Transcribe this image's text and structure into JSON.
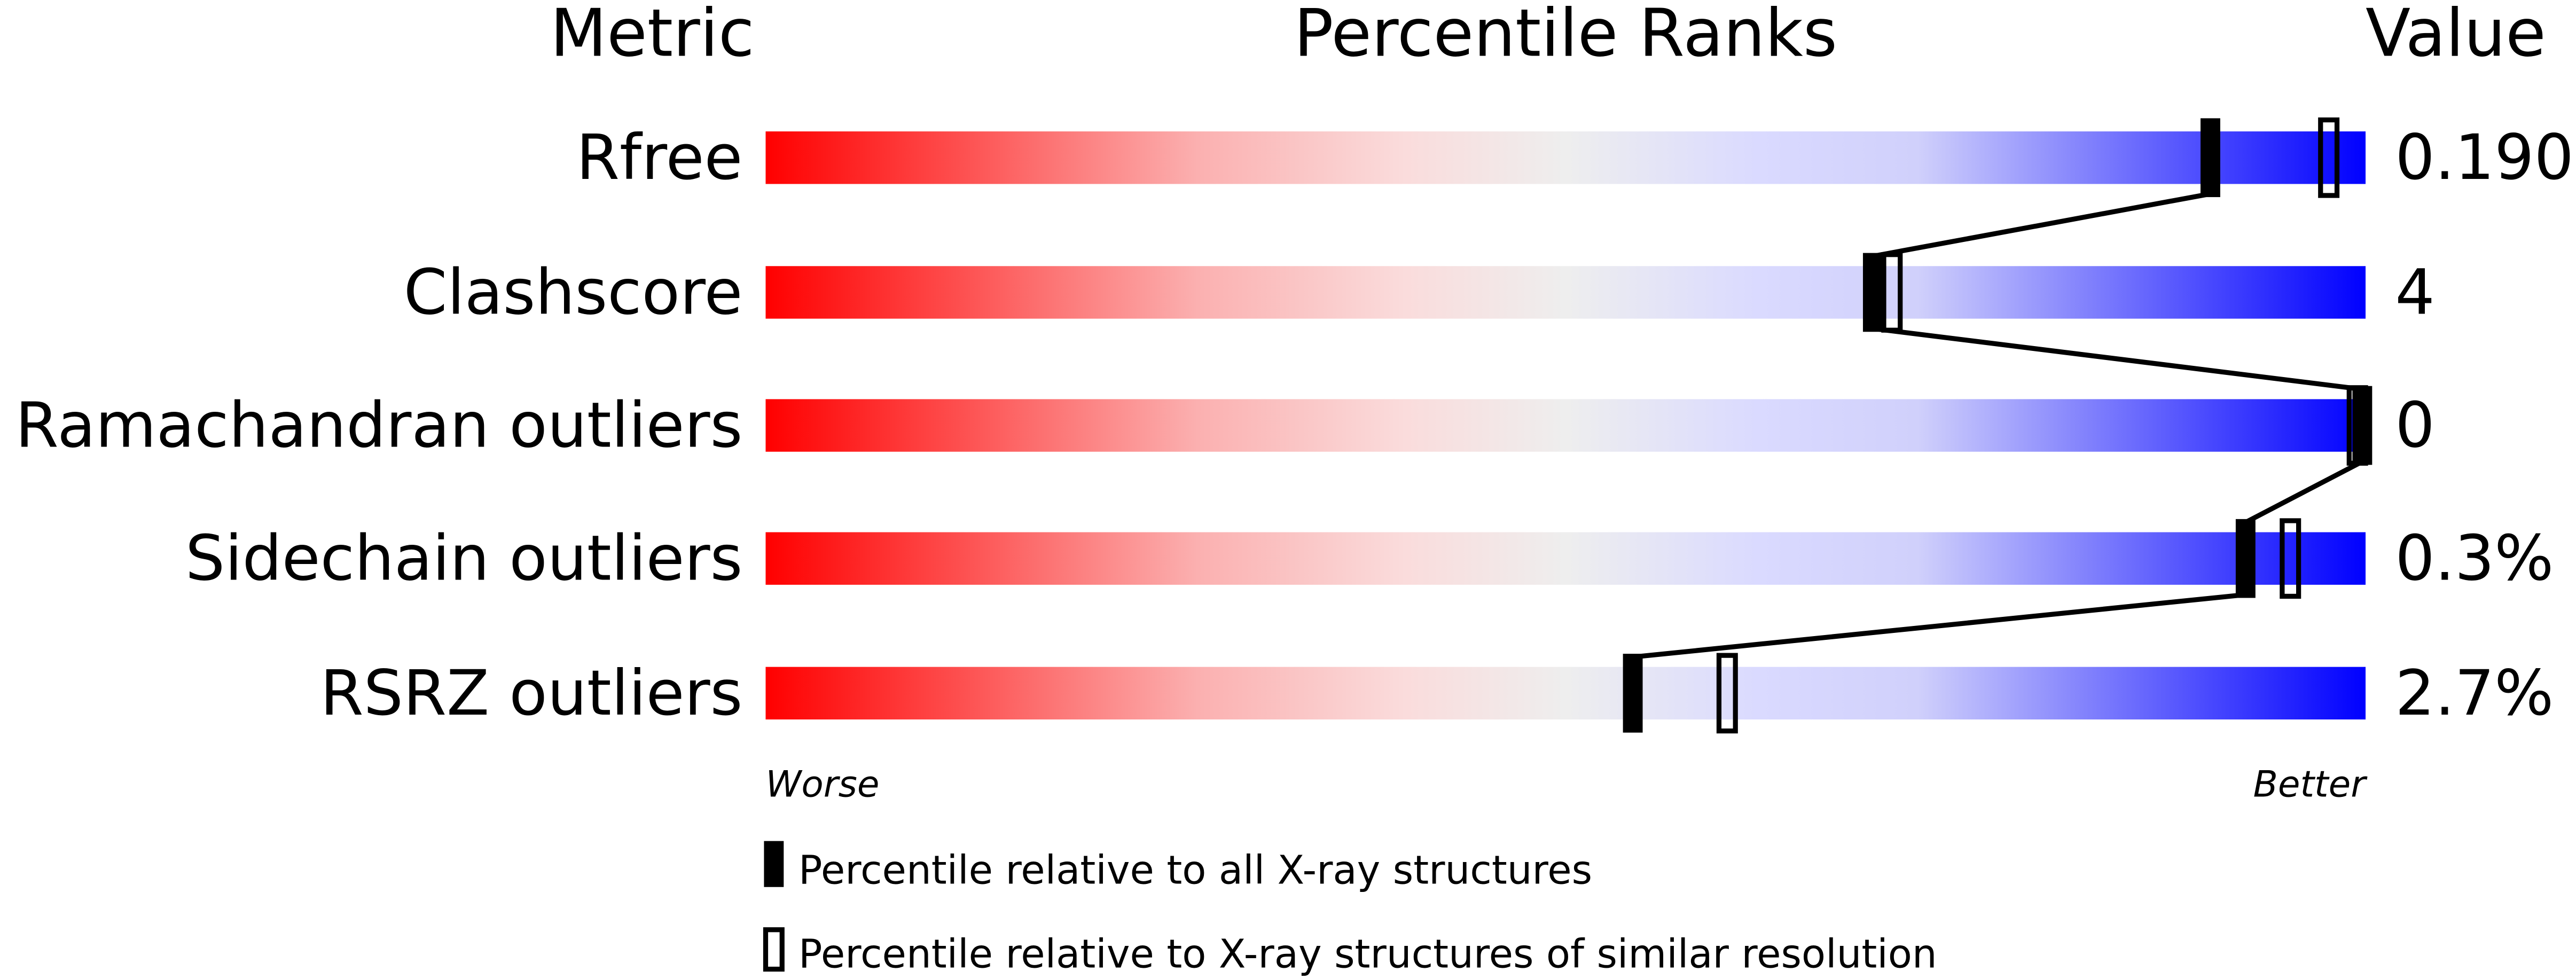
{
  "chart_data": {
    "type": "bar",
    "headers": {
      "metric": "Metric",
      "ranks": "Percentile Ranks",
      "value": "Value"
    },
    "metrics": [
      {
        "label": "Rfree",
        "value": "0.190",
        "percentile_all": 90.3,
        "percentile_similar": 97.7
      },
      {
        "label": "Clashscore",
        "value": "4",
        "percentile_all": 69.2,
        "percentile_similar": 70.4
      },
      {
        "label": "Ramachandran outliers",
        "value": "0",
        "percentile_all": 100,
        "percentile_similar": 100
      },
      {
        "label": "Sidechain outliers",
        "value": "0.3%",
        "percentile_all": 92.5,
        "percentile_similar": 95.3
      },
      {
        "label": "RSRZ outliers",
        "value": "2.7%",
        "percentile_all": 54.2,
        "percentile_similar": 60.1
      }
    ],
    "xlim": [
      0,
      100
    ],
    "axis_left_label": "Worse",
    "axis_right_label": "Better",
    "legend": {
      "filled": "Percentile relative to all X-ray structures",
      "open": "Percentile relative to X-ray structures of similar resolution"
    },
    "colors": {
      "worse": "#ff0000",
      "middle": "#eeeeee",
      "better": "#0000ff"
    }
  }
}
